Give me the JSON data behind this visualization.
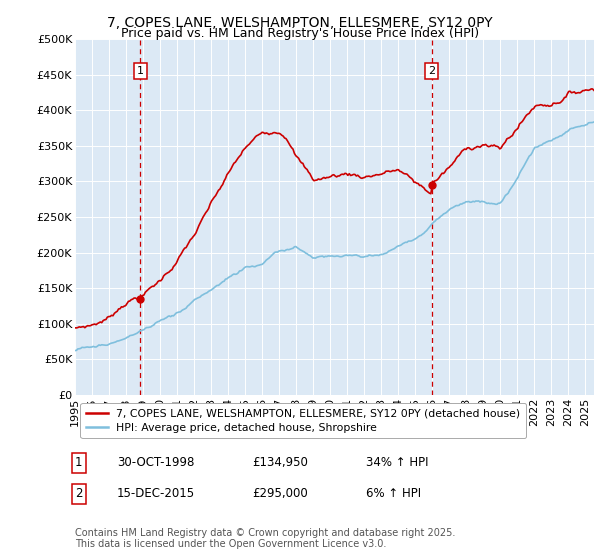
{
  "title": "7, COPES LANE, WELSHAMPTON, ELLESMERE, SY12 0PY",
  "subtitle": "Price paid vs. HM Land Registry's House Price Index (HPI)",
  "ylabel_ticks": [
    "£0",
    "£50K",
    "£100K",
    "£150K",
    "£200K",
    "£250K",
    "£300K",
    "£350K",
    "£400K",
    "£450K",
    "£500K"
  ],
  "ytick_vals": [
    0,
    50000,
    100000,
    150000,
    200000,
    250000,
    300000,
    350000,
    400000,
    450000,
    500000
  ],
  "ylim": [
    0,
    500000
  ],
  "xlim_start": 1995.0,
  "xlim_end": 2025.5,
  "bg_color": "#dce9f5",
  "red_line_color": "#cc0000",
  "blue_line_color": "#7fbfdd",
  "marker1_x": 1998.83,
  "marker1_y": 134950,
  "marker2_x": 2015.96,
  "marker2_y": 295000,
  "vline_color": "#cc0000",
  "legend_label_red": "7, COPES LANE, WELSHAMPTON, ELLESMERE, SY12 0PY (detached house)",
  "legend_label_blue": "HPI: Average price, detached house, Shropshire",
  "table_row1": [
    "1",
    "30-OCT-1998",
    "£134,950",
    "34% ↑ HPI"
  ],
  "table_row2": [
    "2",
    "15-DEC-2015",
    "£295,000",
    "6% ↑ HPI"
  ],
  "footer": "Contains HM Land Registry data © Crown copyright and database right 2025.\nThis data is licensed under the Open Government Licence v3.0.",
  "title_fontsize": 10,
  "subtitle_fontsize": 9,
  "tick_fontsize": 8,
  "legend_fontsize": 8
}
